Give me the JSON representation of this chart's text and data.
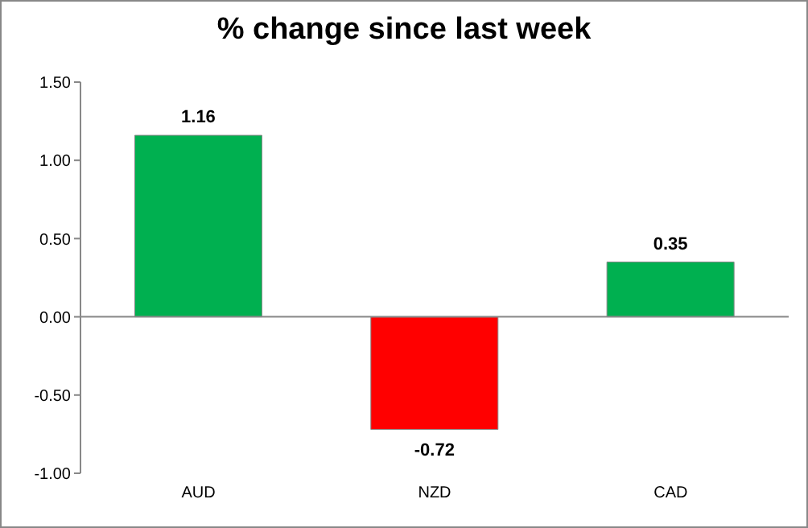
{
  "chart_data": {
    "type": "bar",
    "title": "% change since last week",
    "categories": [
      "AUD",
      "NZD",
      "CAD"
    ],
    "values": [
      1.16,
      -0.72,
      0.35
    ],
    "colors": [
      "#00b050",
      "#ff0000",
      "#00b050"
    ],
    "ylim": [
      -1.0,
      1.5
    ],
    "yticks": [
      {
        "value": -1.0,
        "label": "-1.00"
      },
      {
        "value": -0.5,
        "label": "-0.50"
      },
      {
        "value": 0,
        "label": "0.00"
      },
      {
        "value": 0.5,
        "label": "0.50"
      },
      {
        "value": 1.0,
        "label": "1.00"
      },
      {
        "value": 1.5,
        "label": "1.50"
      }
    ],
    "data_labels": true
  }
}
